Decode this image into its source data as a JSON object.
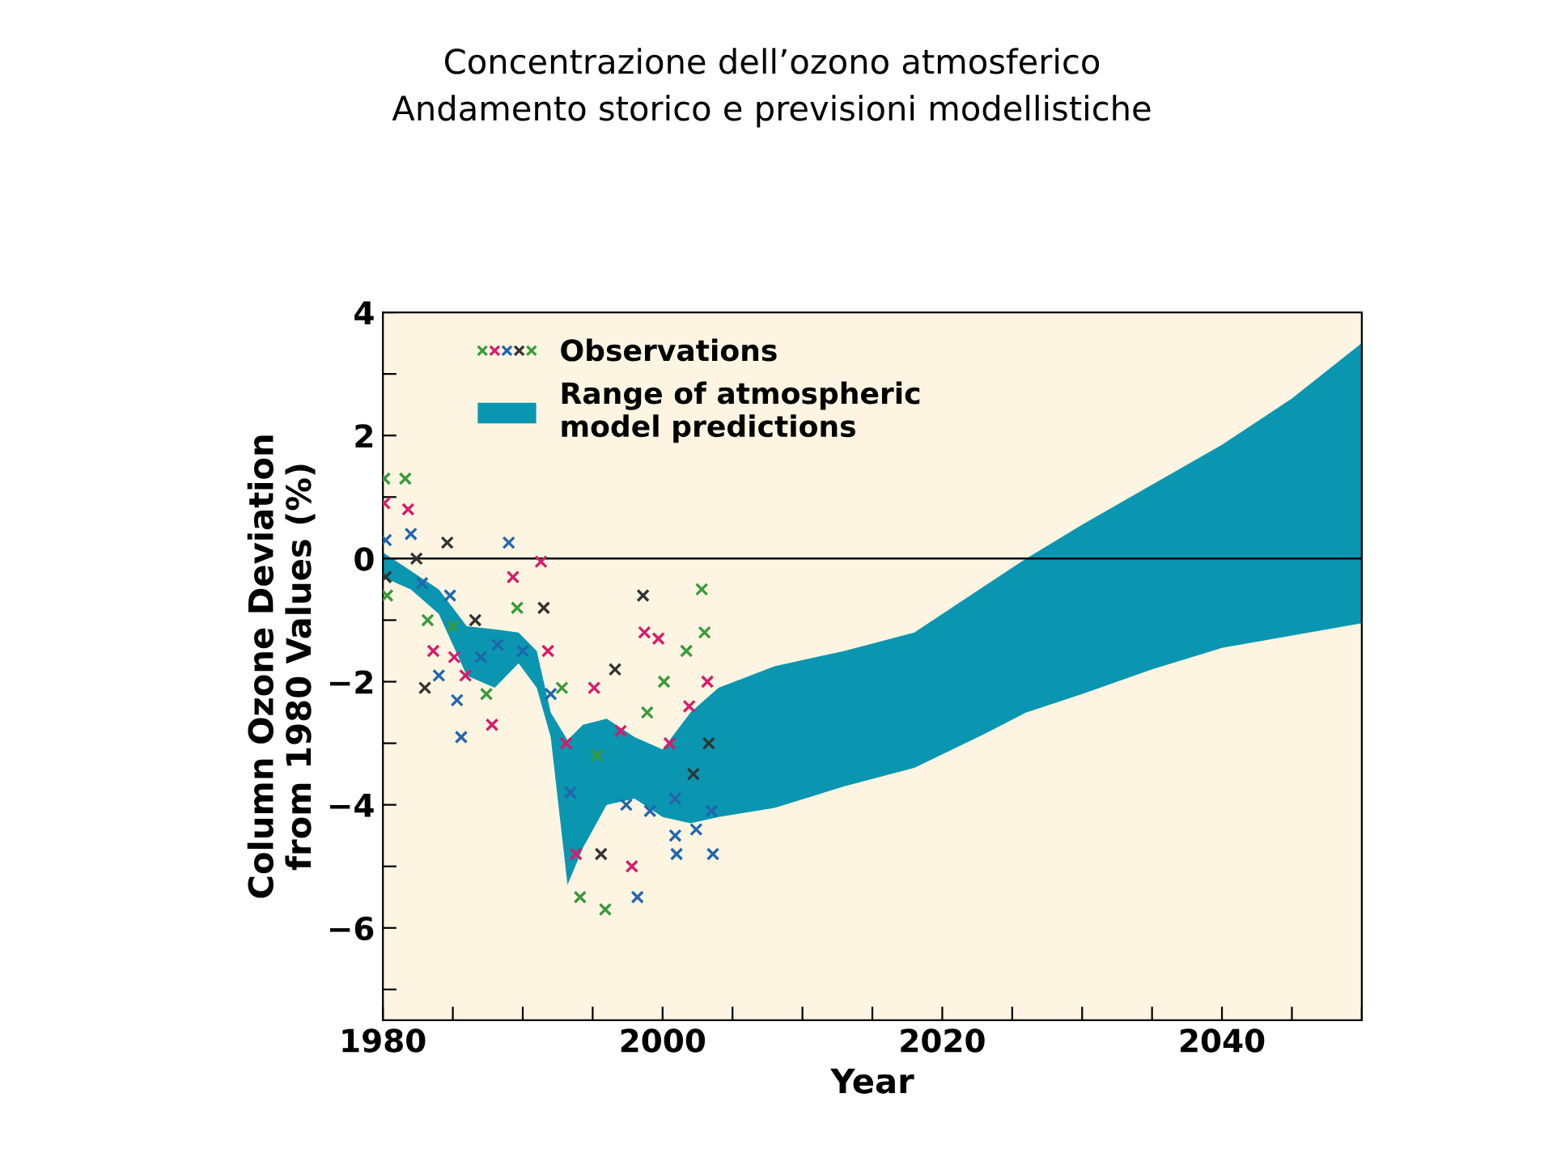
{
  "chart_data": {
    "type": "scatter",
    "title": "Concentrazione dell’ozono atmosferico",
    "subtitle": "Andamento storico e previsioni modellistiche",
    "xlabel": "Year",
    "ylabel": "Column Ozone Deviation\nfrom 1980 Values (%)",
    "xlim": [
      1980,
      2050
    ],
    "xticks": [
      1980,
      {
        "value": 1985,
        "label": null
      },
      {
        "value": 1990,
        "label": null
      },
      {
        "value": 1995,
        "label": null
      },
      2000,
      {
        "value": 2005,
        "label": null
      },
      {
        "value": 2010,
        "label": null
      },
      {
        "value": 2015,
        "label": null
      },
      2020,
      {
        "value": 2025,
        "label": null
      },
      {
        "value": 2030,
        "label": null
      },
      {
        "value": 2035,
        "label": null
      },
      2040,
      {
        "value": 2045,
        "label": null
      },
      {
        "value": 2050,
        "label": null
      }
    ],
    "ylim": [
      -7.5,
      4
    ],
    "yticks": [
      {
        "value": -7,
        "label": null
      },
      {
        "value": -6,
        "label": "−6"
      },
      {
        "value": -5,
        "label": null
      },
      {
        "value": -4,
        "label": "−4"
      },
      {
        "value": -3,
        "label": null
      },
      {
        "value": -2,
        "label": "−2"
      },
      {
        "value": -1,
        "label": null
      },
      0,
      {
        "value": 1,
        "label": null
      },
      2,
      {
        "value": 3,
        "label": null
      },
      4
    ],
    "grid": false,
    "legend": "top left",
    "ref_lines": [
      {
        "axis": "y",
        "value": 0,
        "color": "#000000"
      }
    ],
    "series": [
      {
        "name": "Range of atmospheric\nmodel predictions",
        "type": "area",
        "color": "#0a96b0",
        "x": [
          1980,
          1982,
          1984,
          1986,
          1988,
          1989.7,
          1991,
          1992,
          1993.2,
          1994.3,
          1996,
          1998,
          2000,
          2002,
          2004,
          2008,
          2013,
          2018,
          2023,
          2026,
          2030,
          2035,
          2040,
          2045,
          2050
        ],
        "values": [
          null,
          null,
          null,
          null,
          null,
          null,
          null,
          null,
          null,
          null,
          null,
          null,
          null,
          null,
          null,
          null,
          null,
          null,
          null,
          null,
          null,
          null,
          null,
          null,
          null
        ],
        "upper": [
          0.1,
          -0.2,
          -0.5,
          -1.1,
          -1.15,
          -1.2,
          -1.5,
          -2.5,
          -2.95,
          -2.7,
          -2.6,
          -2.9,
          -3.1,
          -2.5,
          -2.1,
          -1.75,
          -1.5,
          -1.2,
          -0.45,
          0.0,
          0.55,
          1.2,
          1.85,
          2.6,
          3.5
        ],
        "lower": [
          -0.3,
          -0.5,
          -0.9,
          -1.9,
          -2.1,
          -1.7,
          -2.1,
          -2.9,
          -5.3,
          -4.7,
          -4.0,
          -3.9,
          -4.2,
          -4.3,
          -4.2,
          -4.05,
          -3.7,
          -3.4,
          -2.85,
          -2.5,
          -2.2,
          -1.8,
          -1.45,
          -1.25,
          -1.05
        ]
      },
      {
        "name": "Observations",
        "marker": "cross",
        "x": [
          1980.1,
          1980.1,
          1980.2,
          1980.2,
          1980.3,
          1981.6,
          1981.8,
          1982.0,
          1982.4,
          1982.8,
          1983.2,
          1983.6,
          1984.0,
          1983.0,
          1984.6,
          1984.8,
          1985.0,
          1985.1,
          1985.3,
          1985.6,
          1985.9,
          1986.6,
          1987.0,
          1987.4,
          1987.8,
          1988.2,
          1989.0,
          1989.3,
          1989.6,
          1990.0,
          1991.3,
          1991.5,
          1991.8,
          1992.0,
          1992.8,
          1993.1,
          1993.4,
          1993.8,
          1994.1,
          1995.1,
          1995.3,
          1995.6,
          1995.9,
          1996.6,
          1997.0,
          1997.4,
          1997.8,
          1998.2,
          1998.6,
          1998.7,
          1998.9,
          1999.1,
          1999.7,
          2000.1,
          2000.5,
          2000.9,
          2000.9,
          2001.0,
          2001.7,
          2001.9,
          2002.2,
          2002.4,
          2002.8,
          2003.0,
          2003.2,
          2003.3,
          2003.5,
          2003.6
        ],
        "values": [
          1.3,
          0.9,
          0.3,
          -0.3,
          -0.6,
          1.3,
          0.8,
          0.4,
          0.0,
          -0.4,
          -1.0,
          -1.5,
          -1.9,
          -2.1,
          0.26,
          -0.6,
          -1.1,
          -1.6,
          -2.3,
          -2.9,
          -1.9,
          -1.0,
          -1.6,
          -2.2,
          -2.7,
          -1.4,
          0.26,
          -0.3,
          -0.8,
          -1.5,
          -0.05,
          -0.8,
          -1.5,
          -2.2,
          -2.1,
          -3.0,
          -3.8,
          -4.8,
          -5.5,
          -2.1,
          -3.2,
          -4.8,
          -5.7,
          -1.8,
          -2.8,
          -4.0,
          -5.0,
          -5.5,
          -0.6,
          -1.2,
          -2.5,
          -4.1,
          -1.3,
          -2.0,
          -3.0,
          -3.9,
          -4.5,
          -4.8,
          -1.5,
          -2.4,
          -3.5,
          -4.4,
          -0.5,
          -1.2,
          -2.0,
          -3.0,
          -4.1,
          -4.8
        ],
        "colors": [
          "#3a9a3a",
          "#d81b6a",
          "#2166ac",
          "#333333",
          "#3a9a3a",
          "#3a9a3a",
          "#d81b6a",
          "#2166ac",
          "#333333",
          "#2166ac",
          "#3a9a3a",
          "#d81b6a",
          "#2166ac",
          "#333333",
          "#333333",
          "#2166ac",
          "#3a9a3a",
          "#d81b6a",
          "#2166ac",
          "#2166ac",
          "#d81b6a",
          "#333333",
          "#2166ac",
          "#3a9a3a",
          "#d81b6a",
          "#2166ac",
          "#2166ac",
          "#d81b6a",
          "#3a9a3a",
          "#2166ac",
          "#d81b6a",
          "#333333",
          "#d81b6a",
          "#2166ac",
          "#3a9a3a",
          "#d81b6a",
          "#2166ac",
          "#d81b6a",
          "#3a9a3a",
          "#d81b6a",
          "#3a9a3a",
          "#333333",
          "#3a9a3a",
          "#333333",
          "#d81b6a",
          "#2166ac",
          "#d81b6a",
          "#2166ac",
          "#333333",
          "#d81b6a",
          "#3a9a3a",
          "#2166ac",
          "#d81b6a",
          "#3a9a3a",
          "#d81b6a",
          "#2166ac",
          "#2166ac",
          "#2166ac",
          "#3a9a3a",
          "#d81b6a",
          "#333333",
          "#2166ac",
          "#3a9a3a",
          "#3a9a3a",
          "#d81b6a",
          "#333333",
          "#2166ac",
          "#2166ac"
        ]
      }
    ]
  }
}
